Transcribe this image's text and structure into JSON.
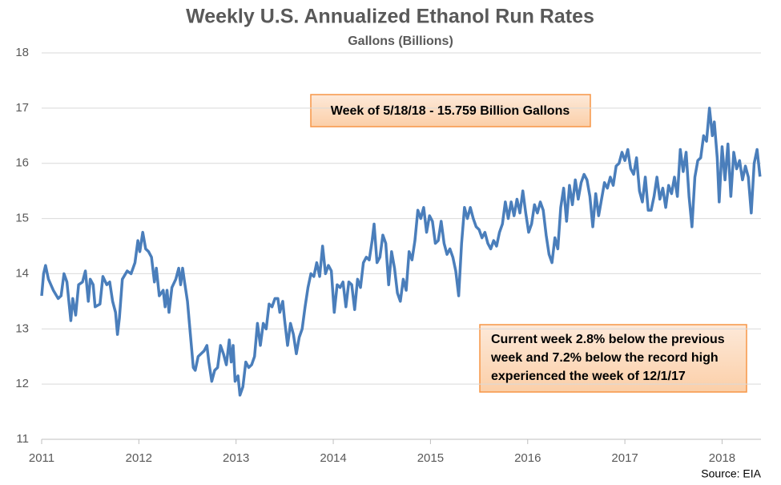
{
  "chart_data": {
    "type": "line",
    "title": "Weekly U.S. Annualized Ethanol Run Rates",
    "subtitle": "Gallons (Billions)",
    "source": "Source: EIA",
    "annotations": [
      {
        "lines": [
          "Week of 5/18/18 - 15.759 Billion Gallons"
        ]
      },
      {
        "lines": [
          "Current week 2.8% below the previous",
          "week and 7.2% below the record high",
          "experienced the week of 12/1/17"
        ]
      }
    ],
    "xlim": [
      2011,
      2018.4
    ],
    "xticks": [
      2011,
      2012,
      2013,
      2014,
      2015,
      2016,
      2017,
      2018
    ],
    "ylim": [
      11,
      18
    ],
    "yticks": [
      11,
      12,
      13,
      14,
      15,
      16,
      17,
      18
    ],
    "grid": true,
    "series": [
      {
        "color": "#4a7ebb",
        "x": [
          2011.0,
          2011.02,
          2011.04,
          2011.07,
          2011.12,
          2011.17,
          2011.2,
          2011.23,
          2011.26,
          2011.3,
          2011.32,
          2011.35,
          2011.38,
          2011.42,
          2011.45,
          2011.48,
          2011.5,
          2011.53,
          2011.55,
          2011.6,
          2011.63,
          2011.67,
          2011.7,
          2011.73,
          2011.76,
          2011.78,
          2011.8,
          2011.83,
          2011.88,
          2011.92,
          2011.96,
          2011.99,
          2012.01,
          2012.04,
          2012.07,
          2012.1,
          2012.13,
          2012.16,
          2012.18,
          2012.21,
          2012.25,
          2012.27,
          2012.29,
          2012.31,
          2012.34,
          2012.38,
          2012.41,
          2012.43,
          2012.45,
          2012.47,
          2012.5,
          2012.53,
          2012.56,
          2012.58,
          2012.61,
          2012.64,
          2012.67,
          2012.7,
          2012.72,
          2012.75,
          2012.78,
          2012.81,
          2012.84,
          2012.87,
          2012.9,
          2012.93,
          2012.95,
          2012.97,
          2012.99,
          2013.02,
          2013.04,
          2013.07,
          2013.1,
          2013.13,
          2013.16,
          2013.19,
          2013.22,
          2013.25,
          2013.28,
          2013.31,
          2013.34,
          2013.37,
          2013.4,
          2013.43,
          2013.45,
          2013.48,
          2013.5,
          2013.53,
          2013.56,
          2013.59,
          2013.62,
          2013.65,
          2013.68,
          2013.71,
          2013.74,
          2013.77,
          2013.8,
          2013.83,
          2013.86,
          2013.89,
          2013.92,
          2013.95,
          2013.98,
          2014.01,
          2014.04,
          2014.07,
          2014.1,
          2014.13,
          2014.16,
          2014.19,
          2014.22,
          2014.25,
          2014.28,
          2014.31,
          2014.34,
          2014.37,
          2014.4,
          2014.42,
          2014.45,
          2014.48,
          2014.51,
          2014.54,
          2014.57,
          2014.6,
          2014.63,
          2014.66,
          2014.69,
          2014.72,
          2014.75,
          2014.78,
          2014.81,
          2014.84,
          2014.87,
          2014.9,
          2014.93,
          2014.96,
          2014.99,
          2015.02,
          2015.05,
          2015.08,
          2015.11,
          2015.14,
          2015.17,
          2015.2,
          2015.23,
          2015.26,
          2015.29,
          2015.32,
          2015.35,
          2015.38,
          2015.41,
          2015.44,
          2015.47,
          2015.5,
          2015.53,
          2015.56,
          2015.59,
          2015.62,
          2015.65,
          2015.68,
          2015.71,
          2015.74,
          2015.77,
          2015.8,
          2015.83,
          2015.86,
          2015.89,
          2015.92,
          2015.95,
          2015.98,
          2016.01,
          2016.04,
          2016.07,
          2016.1,
          2016.13,
          2016.16,
          2016.19,
          2016.22,
          2016.25,
          2016.28,
          2016.31,
          2016.34,
          2016.37,
          2016.4,
          2016.43,
          2016.46,
          2016.49,
          2016.52,
          2016.55,
          2016.58,
          2016.61,
          2016.64,
          2016.67,
          2016.7,
          2016.73,
          2016.76,
          2016.79,
          2016.82,
          2016.85,
          2016.88,
          2016.91,
          2016.94,
          2016.97,
          2017.0,
          2017.03,
          2017.06,
          2017.09,
          2017.12,
          2017.15,
          2017.18,
          2017.21,
          2017.24,
          2017.27,
          2017.3,
          2017.33,
          2017.36,
          2017.39,
          2017.42,
          2017.45,
          2017.48,
          2017.51,
          2017.54,
          2017.57,
          2017.6,
          2017.63,
          2017.66,
          2017.69,
          2017.72,
          2017.75,
          2017.78,
          2017.81,
          2017.84,
          2017.87,
          2017.9,
          2017.92,
          2017.95,
          2017.97,
          2018.0,
          2018.03,
          2018.06,
          2018.09,
          2018.12,
          2018.15,
          2018.18,
          2018.21,
          2018.24,
          2018.27,
          2018.3,
          2018.33,
          2018.36,
          2018.39
        ],
        "values": [
          13.6,
          14.0,
          14.15,
          13.9,
          13.7,
          13.55,
          13.6,
          14.0,
          13.85,
          13.15,
          13.55,
          13.25,
          13.8,
          13.85,
          14.05,
          13.5,
          13.9,
          13.8,
          13.4,
          13.45,
          13.95,
          13.8,
          13.85,
          13.5,
          13.3,
          12.9,
          13.2,
          13.9,
          14.05,
          14.0,
          14.2,
          14.6,
          14.4,
          14.75,
          14.45,
          14.4,
          14.3,
          13.85,
          14.1,
          13.6,
          13.7,
          13.4,
          13.7,
          13.3,
          13.75,
          13.9,
          14.1,
          13.8,
          14.1,
          13.85,
          13.5,
          12.9,
          12.3,
          12.25,
          12.5,
          12.55,
          12.6,
          12.7,
          12.4,
          12.05,
          12.25,
          12.3,
          12.7,
          12.55,
          12.35,
          12.8,
          12.4,
          12.7,
          12.05,
          12.15,
          11.8,
          11.95,
          12.4,
          12.3,
          12.35,
          12.5,
          13.1,
          12.7,
          13.1,
          13.0,
          13.45,
          13.4,
          13.55,
          13.55,
          13.3,
          13.5,
          13.15,
          12.7,
          13.1,
          12.9,
          12.55,
          12.85,
          13.0,
          13.4,
          13.75,
          14.0,
          13.95,
          14.2,
          13.95,
          14.5,
          14.0,
          14.15,
          14.05,
          13.3,
          13.8,
          13.75,
          13.85,
          13.4,
          13.85,
          13.8,
          13.35,
          13.9,
          13.75,
          14.2,
          14.3,
          14.25,
          14.6,
          14.9,
          14.2,
          14.3,
          14.7,
          14.55,
          13.8,
          14.4,
          14.1,
          13.65,
          13.5,
          13.9,
          13.7,
          14.4,
          14.25,
          14.6,
          15.15,
          15.0,
          15.2,
          14.75,
          15.05,
          14.95,
          14.55,
          14.6,
          14.95,
          14.55,
          14.35,
          14.45,
          14.3,
          14.05,
          13.6,
          14.55,
          15.2,
          15.0,
          15.2,
          15.0,
          14.85,
          14.8,
          14.65,
          14.75,
          14.55,
          14.45,
          14.6,
          14.5,
          14.75,
          14.9,
          15.3,
          15.0,
          15.3,
          15.05,
          15.35,
          15.1,
          15.5,
          15.1,
          14.75,
          14.9,
          15.25,
          15.1,
          15.3,
          15.15,
          14.7,
          14.35,
          14.2,
          14.65,
          14.45,
          15.2,
          15.55,
          14.95,
          15.6,
          15.25,
          15.7,
          15.35,
          15.65,
          15.8,
          15.7,
          15.4,
          14.85,
          15.45,
          15.05,
          15.35,
          15.65,
          15.55,
          15.75,
          15.6,
          15.95,
          16.0,
          16.2,
          16.05,
          16.25,
          15.9,
          15.8,
          16.1,
          15.5,
          15.3,
          15.75,
          15.15,
          15.15,
          15.4,
          15.75,
          15.35,
          15.55,
          15.2,
          15.6,
          15.45,
          15.75,
          15.4,
          16.25,
          15.85,
          16.2,
          15.4,
          14.85,
          15.75,
          16.05,
          16.1,
          16.5,
          16.4,
          17.0,
          16.5,
          16.75,
          16.1,
          15.3,
          16.3,
          15.7,
          16.35,
          15.4,
          16.2,
          15.9,
          16.05,
          15.7,
          15.95,
          15.75,
          15.1,
          16.0,
          16.25,
          15.759
        ]
      }
    ]
  }
}
